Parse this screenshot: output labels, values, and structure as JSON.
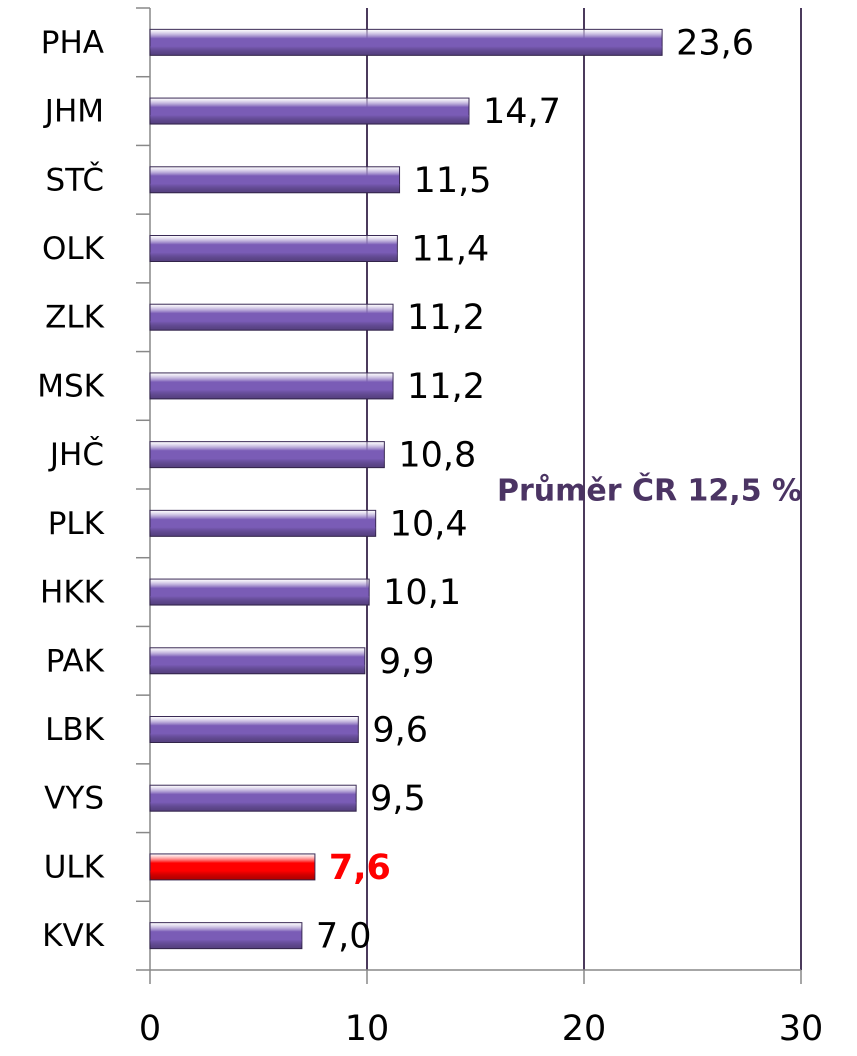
{
  "chart_data": {
    "type": "bar",
    "orientation": "horizontal",
    "categories": [
      "PHA",
      "JHM",
      "STČ",
      "OLK",
      "ZLK",
      "MSK",
      "JHČ",
      "PLK",
      "HKK",
      "PAK",
      "LBK",
      "VYS",
      "ULK",
      "KVK"
    ],
    "values": [
      23.6,
      14.7,
      11.5,
      11.4,
      11.2,
      11.2,
      10.8,
      10.4,
      10.1,
      9.9,
      9.6,
      9.5,
      7.6,
      7.0
    ],
    "value_labels": [
      "23,6",
      "14,7",
      "11,5",
      "11,4",
      "11,2",
      "11,2",
      "10,8",
      "10,4",
      "10,1",
      "9,9",
      "9,6",
      "9,5",
      "7,6",
      "7,0"
    ],
    "color": "#7a5cb6",
    "colors": [
      "#7a5cb6",
      "#7a5cb6",
      "#7a5cb6",
      "#7a5cb6",
      "#7a5cb6",
      "#7a5cb6",
      "#7a5cb6",
      "#7a5cb6",
      "#7a5cb6",
      "#7a5cb6",
      "#7a5cb6",
      "#7a5cb6",
      "#ff0000",
      "#7a5cb6"
    ],
    "xlim": [
      0,
      30
    ],
    "xticks": [
      0,
      10,
      20,
      30
    ],
    "grid": true,
    "annotation": "Průměr ČR 12,5 %"
  }
}
